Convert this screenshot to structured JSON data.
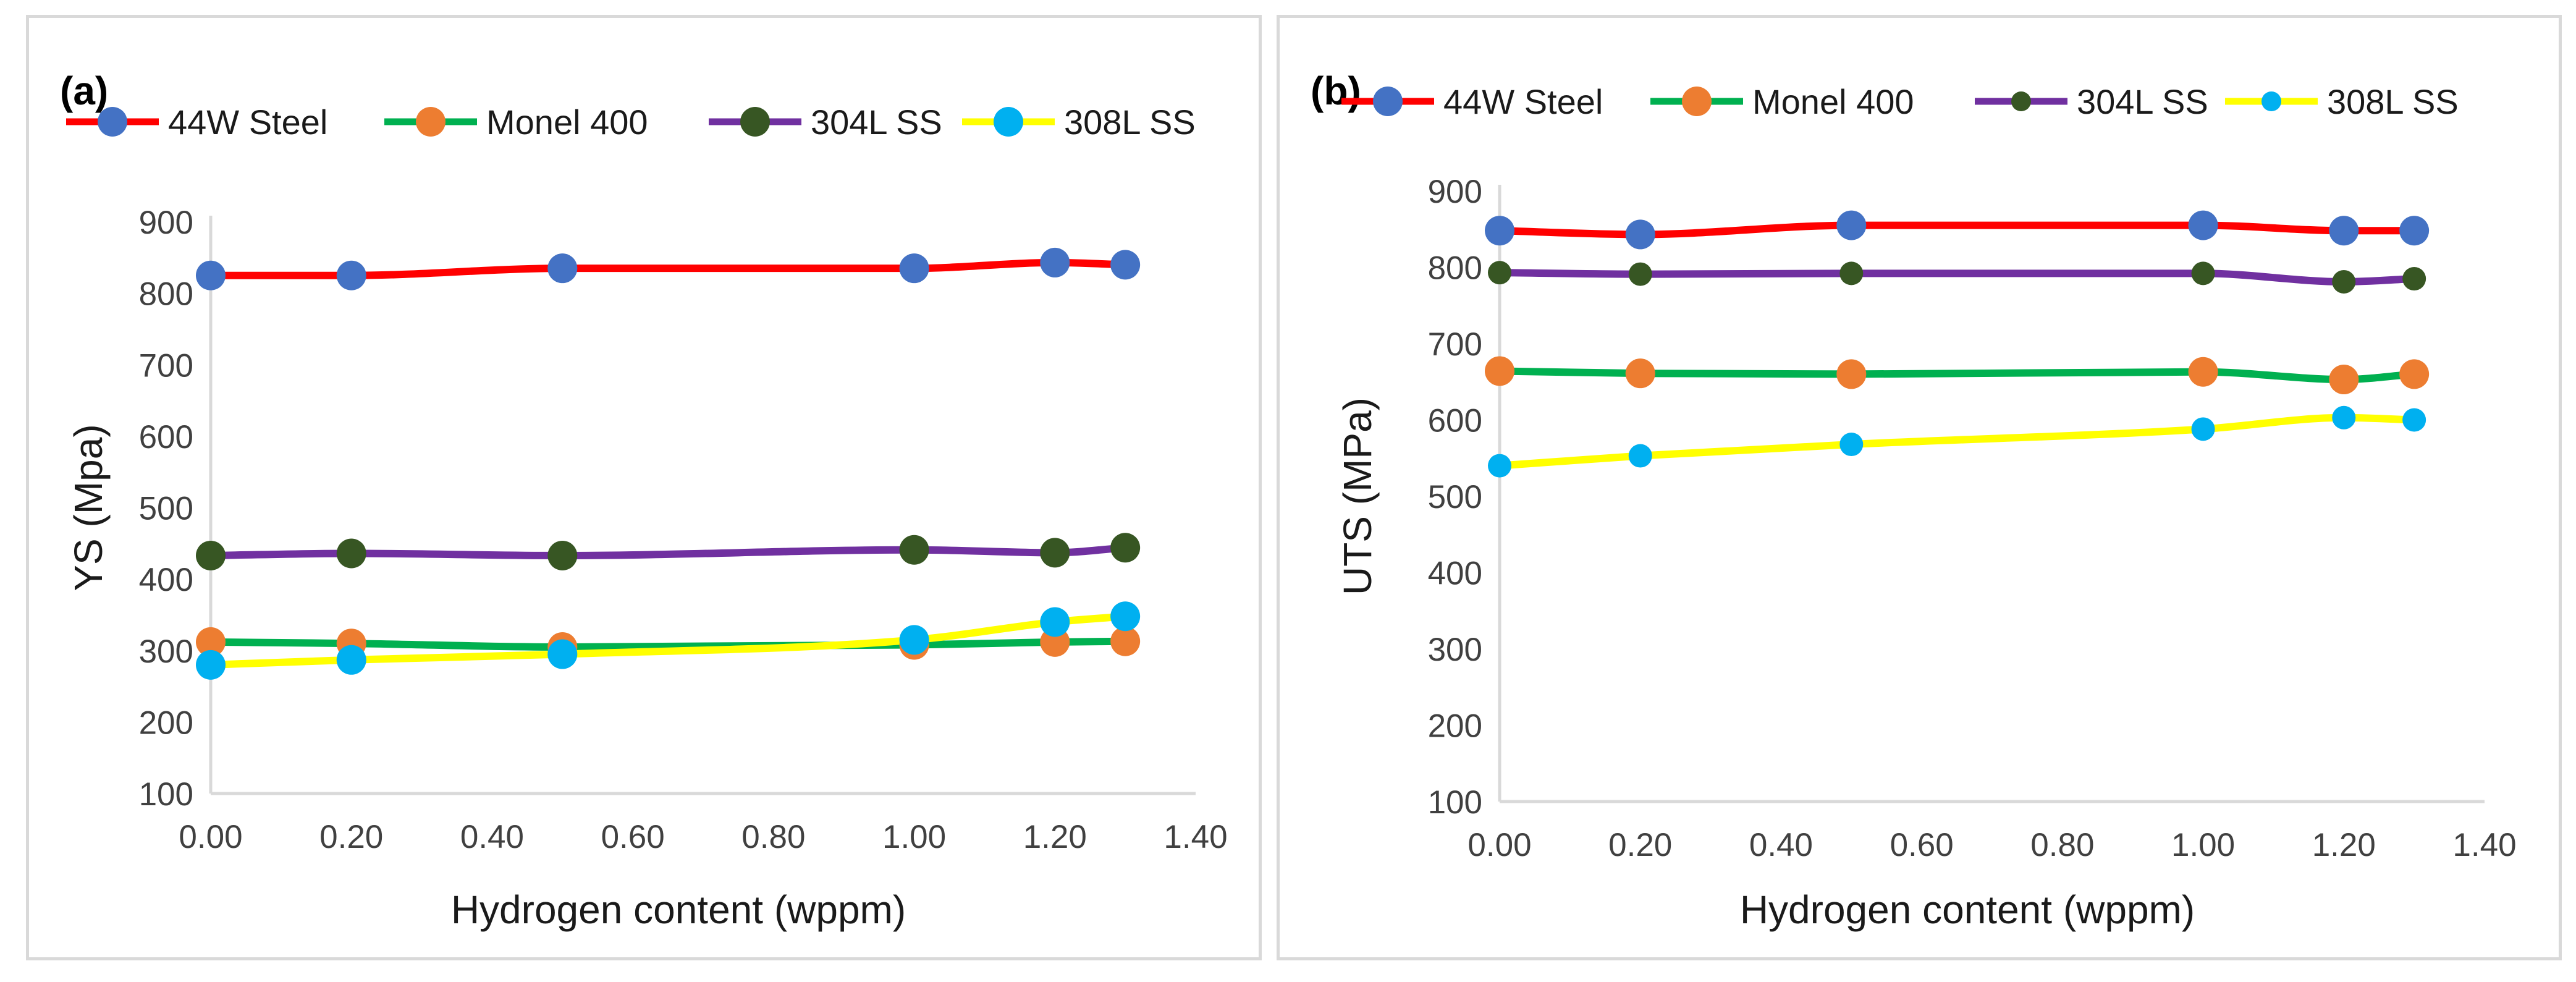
{
  "chart_data": [
    {
      "type": "line",
      "panel_label": "(a)",
      "title": "",
      "xlabel": "Hydrogen content (wppm)",
      "ylabel": "YS (Mpa)",
      "xlim": [
        0,
        1.4
      ],
      "ylim": [
        100,
        900
      ],
      "xticks": [
        "0.00",
        "0.20",
        "0.40",
        "0.60",
        "0.80",
        "1.00",
        "1.20",
        "1.40"
      ],
      "yticks": [
        "100",
        "200",
        "300",
        "400",
        "500",
        "600",
        "700",
        "800",
        "900"
      ],
      "x": [
        0,
        0.2,
        0.5,
        1.0,
        1.2,
        1.3
      ],
      "legend_position": "top",
      "series": [
        {
          "name": "44W Steel",
          "line_color": "#ff0000",
          "marker_color": "#4472c4",
          "marker": "large",
          "values": [
            825,
            825,
            835,
            835,
            843,
            840
          ]
        },
        {
          "name": "Monel 400",
          "line_color": "#00b050",
          "marker_color": "#ed7d31",
          "marker": "large",
          "values": [
            312,
            310,
            305,
            308,
            312,
            313
          ]
        },
        {
          "name": "304L SS",
          "line_color": "#7030a0",
          "marker_color": "#375623",
          "marker": "large",
          "values": [
            433,
            436,
            433,
            441,
            437,
            444
          ]
        },
        {
          "name": "308L SS",
          "line_color": "#ffff00",
          "marker_color": "#00b0f0",
          "marker": "large",
          "values": [
            280,
            287,
            295,
            315,
            340,
            348
          ]
        }
      ]
    },
    {
      "type": "line",
      "panel_label": "(b)",
      "title": "",
      "xlabel": "Hydrogen content (wppm)",
      "ylabel": "UTS (MPa)",
      "xlim": [
        0,
        1.4
      ],
      "ylim": [
        100,
        900
      ],
      "xticks": [
        "0.00",
        "0.20",
        "0.40",
        "0.60",
        "0.80",
        "1.00",
        "1.20",
        "1.40"
      ],
      "yticks": [
        "100",
        "200",
        "300",
        "400",
        "500",
        "600",
        "700",
        "800",
        "900"
      ],
      "x": [
        0,
        0.2,
        0.5,
        1.0,
        1.2,
        1.3
      ],
      "legend_position": "top",
      "series": [
        {
          "name": "44W Steel",
          "line_color": "#ff0000",
          "marker_color": "#4472c4",
          "marker": "large",
          "values": [
            848,
            843,
            855,
            855,
            848,
            848
          ]
        },
        {
          "name": "Monel 400",
          "line_color": "#00b050",
          "marker_color": "#ed7d31",
          "marker": "large",
          "values": [
            664,
            661,
            660,
            663,
            653,
            660
          ]
        },
        {
          "name": "304L SS",
          "line_color": "#7030a0",
          "marker_color": "#375623",
          "marker": "small",
          "values": [
            793,
            791,
            792,
            792,
            781,
            785
          ]
        },
        {
          "name": "308L SS",
          "line_color": "#ffff00",
          "marker_color": "#00b0f0",
          "marker": "small",
          "values": [
            540,
            553,
            568,
            588,
            603,
            600
          ]
        }
      ]
    }
  ]
}
